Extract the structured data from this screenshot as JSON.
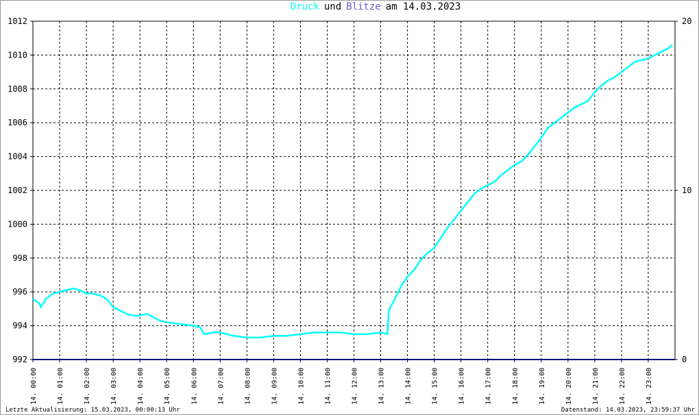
{
  "chart_data": {
    "type": "line",
    "title": [
      "Druck",
      "und",
      "Blitze",
      "am 14.03.2023"
    ],
    "footer_left": "Letzte Aktualisierung: 15.03.2023, 00:00:13 Uhr",
    "footer_right": "Datenstand: 14.03.2023, 23:59:37 Uhr",
    "xlim": [
      0,
      24
    ],
    "xticks": [
      {
        "value": 0,
        "label": "14. 00:00"
      },
      {
        "value": 1,
        "label": "14. 01:00"
      },
      {
        "value": 2,
        "label": "14. 02:00"
      },
      {
        "value": 3,
        "label": "14. 03:00"
      },
      {
        "value": 4,
        "label": "14. 04:00"
      },
      {
        "value": 5,
        "label": "14. 05:00"
      },
      {
        "value": 6,
        "label": "14. 06:00"
      },
      {
        "value": 7,
        "label": "14. 07:00"
      },
      {
        "value": 8,
        "label": "14. 08:00"
      },
      {
        "value": 9,
        "label": "14. 09:00"
      },
      {
        "value": 10,
        "label": "14. 10:00"
      },
      {
        "value": 11,
        "label": "14. 11:00"
      },
      {
        "value": 12,
        "label": "14. 12:00"
      },
      {
        "value": 13,
        "label": "14. 13:00"
      },
      {
        "value": 14,
        "label": "14. 14:00"
      },
      {
        "value": 15,
        "label": "14. 15:00"
      },
      {
        "value": 16,
        "label": "14. 16:00"
      },
      {
        "value": 17,
        "label": "14. 17:00"
      },
      {
        "value": 18,
        "label": "14. 18:00"
      },
      {
        "value": 19,
        "label": "14. 19:00"
      },
      {
        "value": 20,
        "label": "14. 20:00"
      },
      {
        "value": 21,
        "label": "14. 21:00"
      },
      {
        "value": 22,
        "label": "14. 22:00"
      },
      {
        "value": 23,
        "label": "14. 23:00"
      }
    ],
    "ylim": [
      992,
      1012
    ],
    "yticks": [
      992,
      994,
      996,
      998,
      1000,
      1002,
      1004,
      1006,
      1008,
      1010,
      1012
    ],
    "y2lim": [
      0,
      20
    ],
    "y2ticks": [
      0,
      10,
      20
    ],
    "grid": true,
    "series": [
      {
        "name": "Druck",
        "color": "#00ffff",
        "x": [
          0,
          0.25,
          0.3,
          0.5,
          0.75,
          1,
          1.25,
          1.5,
          1.75,
          2,
          2.25,
          2.5,
          2.75,
          3,
          3.25,
          3.5,
          3.75,
          4,
          4.25,
          4.5,
          4.75,
          5,
          5.5,
          6,
          6.25,
          6.4,
          6.75,
          7,
          7.5,
          8,
          8.5,
          9,
          9.5,
          10,
          10.5,
          11,
          11.5,
          12,
          12.5,
          13,
          13.25,
          13.3,
          13.5,
          13.75,
          14,
          14.25,
          14.5,
          14.75,
          15,
          15.25,
          15.5,
          15.75,
          16,
          16.25,
          16.5,
          16.75,
          17,
          17.25,
          17.5,
          17.75,
          18,
          18.25,
          18.5,
          18.75,
          19,
          19.25,
          19.5,
          19.75,
          20,
          20.25,
          20.5,
          20.75,
          21,
          21.25,
          21.5,
          21.75,
          22,
          22.25,
          22.5,
          22.75,
          23,
          23.25,
          23.5,
          23.75,
          23.9
        ],
        "values": [
          995.6,
          995.3,
          995.1,
          995.6,
          995.9,
          996.0,
          996.1,
          996.2,
          996.1,
          995.9,
          995.9,
          995.8,
          995.6,
          995.1,
          994.9,
          994.7,
          994.6,
          994.6,
          994.7,
          994.5,
          994.3,
          994.2,
          994.1,
          994.0,
          993.9,
          993.5,
          993.6,
          993.6,
          993.4,
          993.3,
          993.3,
          993.4,
          993.4,
          993.5,
          993.6,
          993.6,
          993.6,
          993.5,
          993.5,
          993.6,
          993.5,
          994.9,
          995.5,
          996.3,
          996.9,
          997.3,
          997.9,
          998.3,
          998.6,
          999.2,
          999.8,
          1000.3,
          1000.8,
          1001.3,
          1001.8,
          1002.1,
          1002.3,
          1002.5,
          1002.9,
          1003.2,
          1003.5,
          1003.7,
          1004.1,
          1004.6,
          1005.1,
          1005.7,
          1006.0,
          1006.3,
          1006.6,
          1006.9,
          1007.1,
          1007.3,
          1007.8,
          1008.2,
          1008.5,
          1008.7,
          1009.0,
          1009.3,
          1009.6,
          1009.7,
          1009.8,
          1010.0,
          1010.2,
          1010.4,
          1010.6
        ]
      },
      {
        "name": "Blitze",
        "color": "#6a5acd",
        "axis": "y2",
        "line_color": "#000080",
        "x": [
          0,
          24
        ],
        "values": [
          0,
          0
        ]
      }
    ]
  }
}
